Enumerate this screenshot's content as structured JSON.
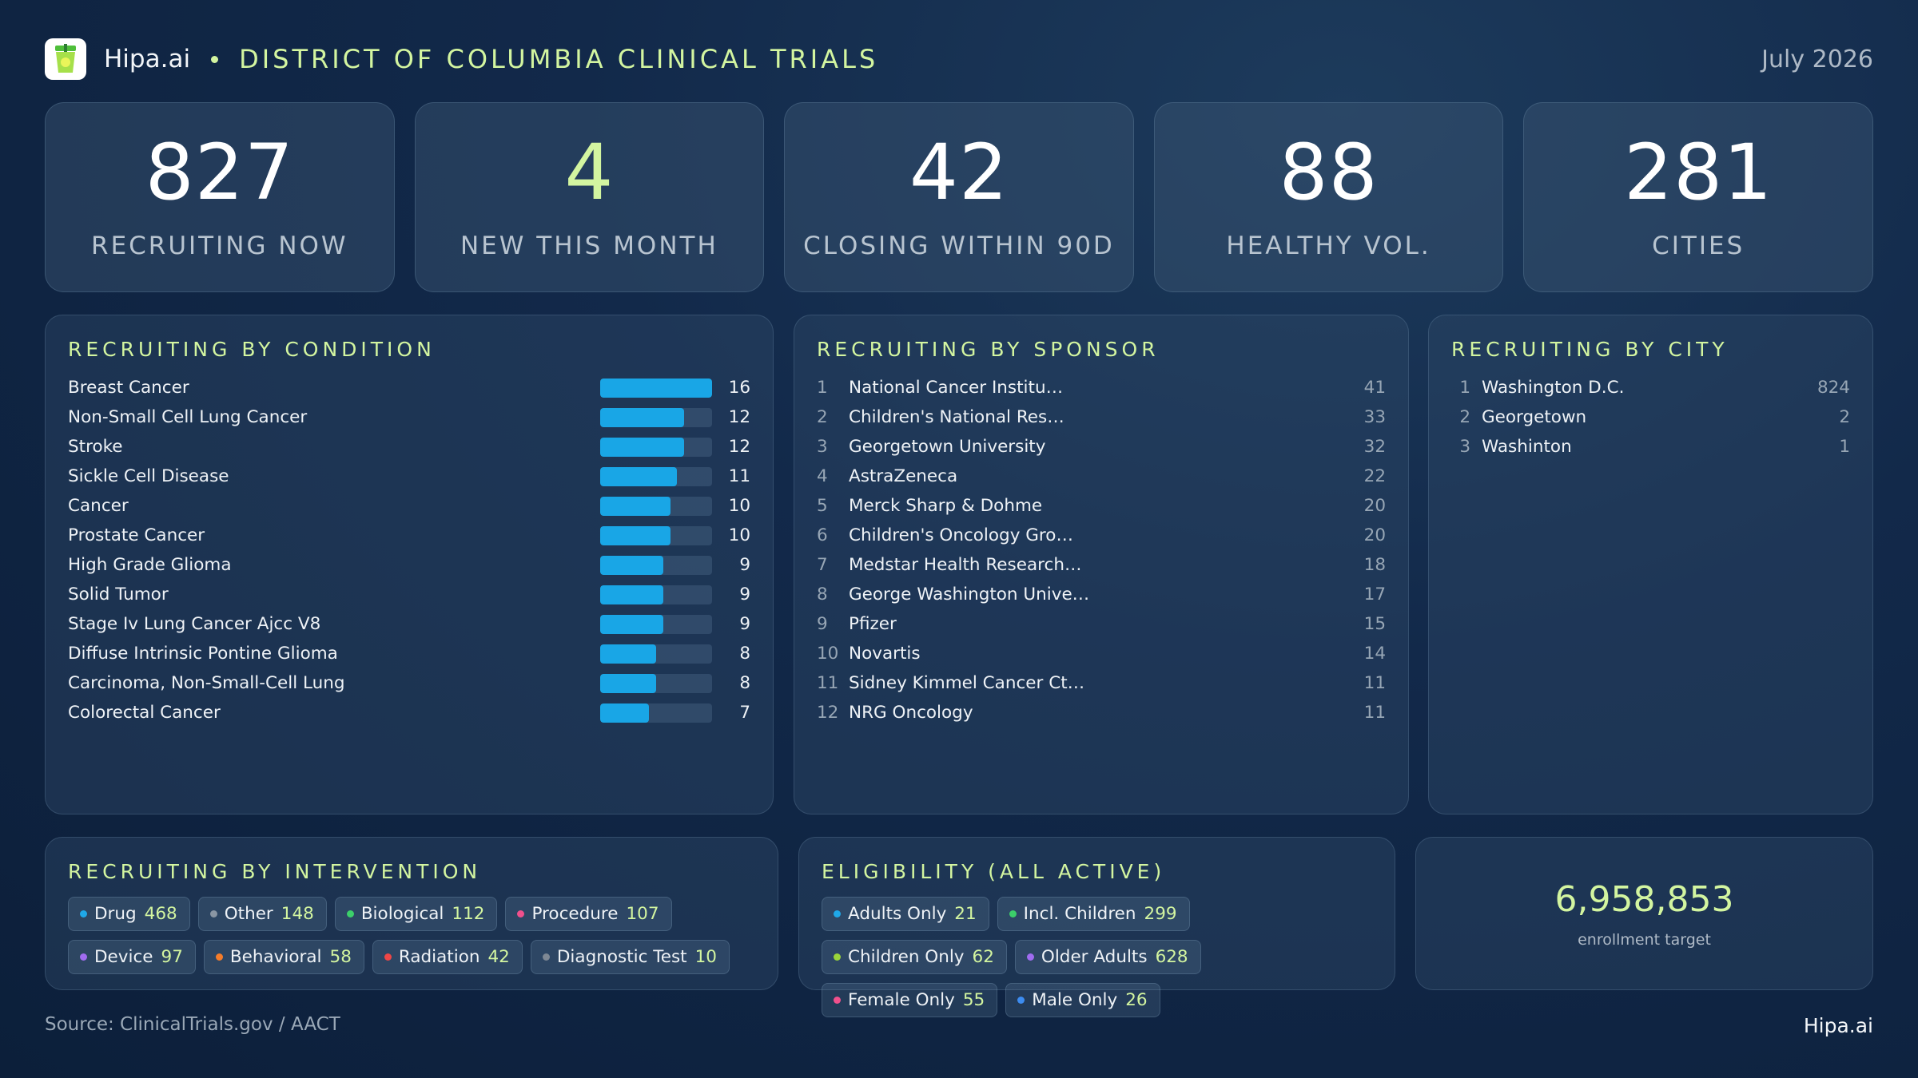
{
  "header": {
    "brand": "Hipa.ai",
    "title": "DISTRICT OF COLUMBIA CLINICAL TRIALS",
    "date": "July 2026"
  },
  "kpis": [
    {
      "value": "827",
      "label": "RECRUITING NOW"
    },
    {
      "value": "4",
      "label": "NEW THIS MONTH"
    },
    {
      "value": "42",
      "label": "CLOSING WITHIN 90D"
    },
    {
      "value": "88",
      "label": "HEALTHY VOL."
    },
    {
      "value": "281",
      "label": "CITIES"
    }
  ],
  "conditions": {
    "title": "RECRUITING BY CONDITION",
    "max": 16,
    "colors": {
      "bar": "#19a6e6"
    },
    "items": [
      {
        "name": "Breast Cancer",
        "value": 16
      },
      {
        "name": "Non-Small Cell Lung Cancer",
        "value": 12
      },
      {
        "name": "Stroke",
        "value": 12
      },
      {
        "name": "Sickle Cell Disease",
        "value": 11
      },
      {
        "name": "Cancer",
        "value": 10
      },
      {
        "name": "Prostate Cancer",
        "value": 10
      },
      {
        "name": "High Grade Glioma",
        "value": 9
      },
      {
        "name": "Solid Tumor",
        "value": 9
      },
      {
        "name": "Stage Iv Lung Cancer Ajcc V8",
        "value": 9
      },
      {
        "name": "Diffuse Intrinsic Pontine Glioma",
        "value": 8
      },
      {
        "name": "Carcinoma, Non-Small-Cell Lung",
        "value": 8
      },
      {
        "name": "Colorectal Cancer",
        "value": 7
      }
    ]
  },
  "sponsors": {
    "title": "RECRUITING BY SPONSOR",
    "items": [
      {
        "rank": "1",
        "name": "National Cancer Institu…",
        "value": "41"
      },
      {
        "rank": "2",
        "name": "Children's National Res…",
        "value": "33"
      },
      {
        "rank": "3",
        "name": "Georgetown University",
        "value": "32"
      },
      {
        "rank": "4",
        "name": "AstraZeneca",
        "value": "22"
      },
      {
        "rank": "5",
        "name": "Merck Sharp & Dohme",
        "value": "20"
      },
      {
        "rank": "6",
        "name": "Children's Oncology Gro…",
        "value": "20"
      },
      {
        "rank": "7",
        "name": "Medstar Health Research…",
        "value": "18"
      },
      {
        "rank": "8",
        "name": "George Washington Unive…",
        "value": "17"
      },
      {
        "rank": "9",
        "name": "Pfizer",
        "value": "15"
      },
      {
        "rank": "10",
        "name": "Novartis",
        "value": "14"
      },
      {
        "rank": "11",
        "name": "Sidney Kimmel Cancer Ct…",
        "value": "11"
      },
      {
        "rank": "12",
        "name": "NRG Oncology",
        "value": "11"
      }
    ]
  },
  "cities": {
    "title": "RECRUITING BY CITY",
    "items": [
      {
        "rank": "1",
        "name": "Washington D.C.",
        "value": "824"
      },
      {
        "rank": "2",
        "name": "Georgetown",
        "value": "2"
      },
      {
        "rank": "3",
        "name": "Washinton",
        "value": "1"
      }
    ]
  },
  "interventions": {
    "title": "RECRUITING BY INTERVENTION",
    "items": [
      {
        "label": "Drug",
        "count": "468",
        "color": "#1fa8e8"
      },
      {
        "label": "Other",
        "count": "148",
        "color": "#8a96a3"
      },
      {
        "label": "Biological",
        "count": "112",
        "color": "#3ccf6a"
      },
      {
        "label": "Procedure",
        "count": "107",
        "color": "#f0508c"
      },
      {
        "label": "Device",
        "count": "97",
        "color": "#a06cf0"
      },
      {
        "label": "Behavioral",
        "count": "58",
        "color": "#f57c2a"
      },
      {
        "label": "Radiation",
        "count": "42",
        "color": "#ee4646"
      },
      {
        "label": "Diagnostic Test",
        "count": "10",
        "color": "#7e8894"
      }
    ]
  },
  "eligibility": {
    "title": "ELIGIBILITY (ALL ACTIVE)",
    "items": [
      {
        "label": "Adults Only",
        "count": "21",
        "color": "#1fa8e8"
      },
      {
        "label": "Incl. Children",
        "count": "299",
        "color": "#3ccf6a"
      },
      {
        "label": "Children Only",
        "count": "62",
        "color": "#9ad43a"
      },
      {
        "label": "Older Adults",
        "count": "628",
        "color": "#a06cf0"
      },
      {
        "label": "Female Only",
        "count": "55",
        "color": "#f0508c"
      },
      {
        "label": "Male Only",
        "count": "26",
        "color": "#3d8cf0"
      }
    ]
  },
  "enrollment": {
    "value": "6,958,853",
    "label": "enrollment target"
  },
  "footer": {
    "source": "Source: ClinicalTrials.gov /  AACT",
    "brand": "Hipa.ai"
  }
}
